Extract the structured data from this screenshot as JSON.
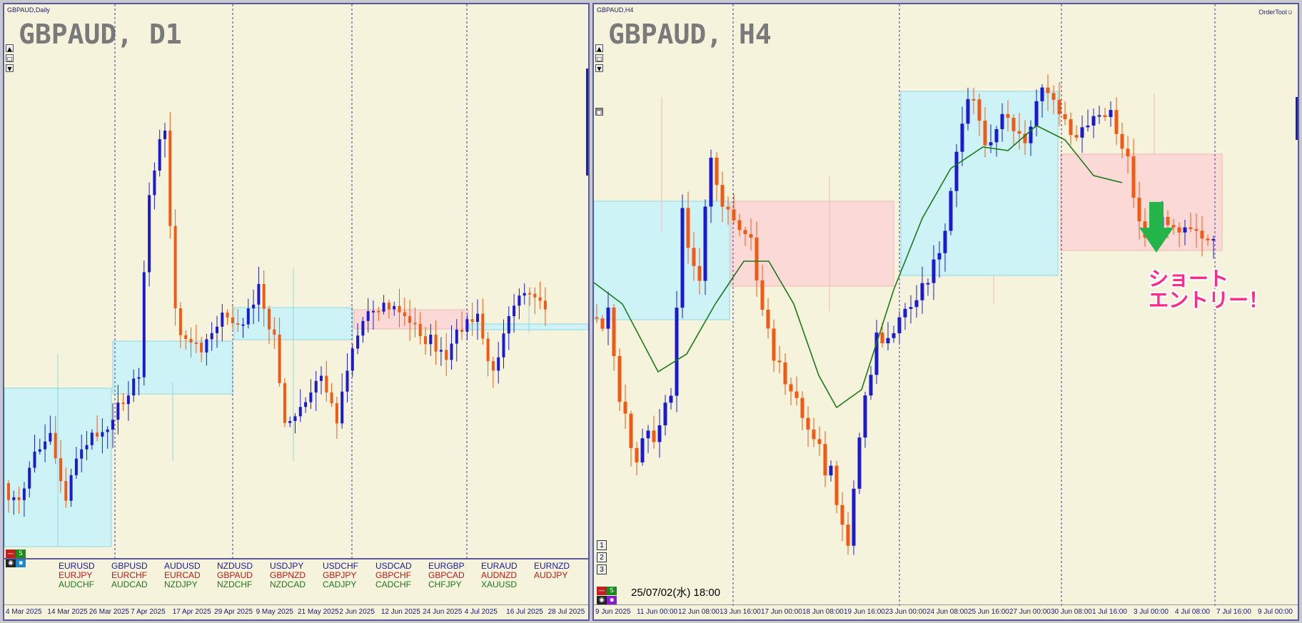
{
  "left": {
    "window_title": "GBPAUD,Daily",
    "chart_title": "GBPAUD, D1",
    "xlabels": [
      "4 Mar 2025",
      "14 Mar 2025",
      "26 Mar 2025",
      "7 Apr 2025",
      "17 Apr 2025",
      "29 Apr 2025",
      "9 May 2025",
      "21 May 2025",
      "2 Jun 2025",
      "12 Jun 2025",
      "24 Jun 2025",
      "4 Jul 2025",
      "16 Jul 2025",
      "28 Jul 2025"
    ],
    "symbols": [
      [
        {
          "t": "EURUSD",
          "c": "#1a1a9a"
        },
        {
          "t": "EURJPY",
          "c": "#c01818"
        },
        {
          "t": "AUDCHF",
          "c": "#1a7a1a"
        }
      ],
      [
        {
          "t": "GBPUSD",
          "c": "#1a1a9a"
        },
        {
          "t": "EURCHF",
          "c": "#c01818"
        },
        {
          "t": "AUDCAD",
          "c": "#1a7a1a"
        }
      ],
      [
        {
          "t": "AUDUSD",
          "c": "#1a1a9a"
        },
        {
          "t": "EURCAD",
          "c": "#c01818"
        },
        {
          "t": "NZDJPY",
          "c": "#1a7a1a"
        }
      ],
      [
        {
          "t": "NZDUSD",
          "c": "#1a1a9a"
        },
        {
          "t": "GBPAUD",
          "c": "#c01818"
        },
        {
          "t": "NZDCHF",
          "c": "#1a7a1a"
        }
      ],
      [
        {
          "t": "USDJPY",
          "c": "#1a1a9a"
        },
        {
          "t": "GBPNZD",
          "c": "#c01818"
        },
        {
          "t": "NZDCAD",
          "c": "#1a7a1a"
        }
      ],
      [
        {
          "t": "USDCHF",
          "c": "#1a1a9a"
        },
        {
          "t": "GBPJPY",
          "c": "#c01818"
        },
        {
          "t": "CADJPY",
          "c": "#1a7a1a"
        }
      ],
      [
        {
          "t": "USDCAD",
          "c": "#1a1a9a"
        },
        {
          "t": "GBPCHF",
          "c": "#c01818"
        },
        {
          "t": "CADCHF",
          "c": "#1a7a1a"
        }
      ],
      [
        {
          "t": "EURGBP",
          "c": "#1a1a9a"
        },
        {
          "t": "GBPCAD",
          "c": "#c01818"
        },
        {
          "t": "CHFJPY",
          "c": "#1a7a1a"
        }
      ],
      [
        {
          "t": "EURAUD",
          "c": "#1a1a9a"
        },
        {
          "t": "AUDNZD",
          "c": "#c01818"
        },
        {
          "t": "XAUUSD",
          "c": "#1a7a1a"
        }
      ],
      [
        {
          "t": "EURNZD",
          "c": "#1a1a9a"
        },
        {
          "t": "AUDJPY",
          "c": "#c01818"
        }
      ]
    ]
  },
  "right": {
    "window_title": "GBPAUD,H4",
    "chart_title": "GBPAUD, H4",
    "order_tool": "OrderTool☺",
    "xlabels": [
      "9 Jun 2025",
      "11 Jun 00:00",
      "12 Jun 08:00",
      "13 Jun 16:00",
      "17 Jun 00:00",
      "18 Jun 08:00",
      "19 Jun 16:00",
      "23 Jun 00:00",
      "24 Jun 08:00",
      "25 Jun 16:00",
      "27 Jun 00:00",
      "30 Jun 08:00",
      "1 Jul 16:00",
      "3 Jul 00:00",
      "4 Jul 08:00",
      "7 Jul 16:00",
      "9 Jul 00:00"
    ],
    "datetime": "25/07/02(水) 18:00",
    "annotation_line1": "ショート",
    "annotation_line2": "エントリー！",
    "num_buttons": [
      "1",
      "2",
      "3"
    ]
  },
  "colors": {
    "bull": "#1a1ad0",
    "bear": "#f05a14",
    "ma": "#1a7a1a",
    "blue_zone": "#cdf3f7",
    "red_zone": "#fbd9d6",
    "arrow": "#23b54a",
    "annotation": "#ff2a8a"
  },
  "icons": {
    "arrow": "down-arrow-icon"
  }
}
